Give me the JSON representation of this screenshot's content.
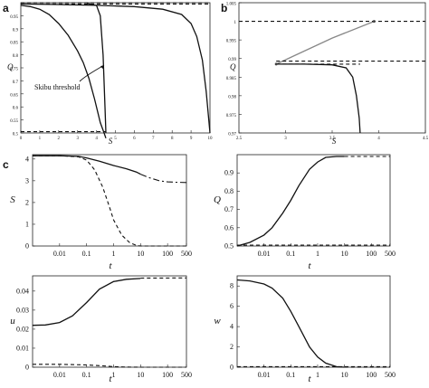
{
  "figure": {
    "panel_labels": {
      "a": "a",
      "b": "b",
      "c": "c"
    }
  },
  "chart_data": [
    {
      "id": "a",
      "type": "line",
      "xlabel": "S",
      "ylabel": "Q",
      "xlim": [
        0,
        10
      ],
      "ylim": [
        0.5,
        1.0
      ],
      "x_ticks": [
        "0",
        "1",
        "2",
        "3",
        "4",
        "5",
        "6",
        "7",
        "8",
        "9",
        "10"
      ],
      "y_ticks": [
        "0.5",
        "0.55",
        "0.6",
        "0.65",
        "0.7",
        "0.75",
        "0.8",
        "0.85",
        "0.9",
        "0.95"
      ],
      "annotation": "Skibu threshold",
      "series": [
        {
          "style": "solid",
          "x": [
            0.0,
            0.5,
            1.0,
            1.5,
            2.0,
            2.5,
            3.0,
            3.3,
            3.6,
            3.9,
            4.2,
            4.4,
            4.5
          ],
          "y": [
            0.99,
            0.985,
            0.975,
            0.955,
            0.92,
            0.875,
            0.815,
            0.77,
            0.71,
            0.63,
            0.54,
            0.5,
            0.48
          ]
        },
        {
          "style": "solid",
          "x": [
            3.5,
            4.0,
            4.2,
            4.35,
            4.45,
            4.5
          ],
          "y": [
            0.997,
            0.99,
            0.95,
            0.8,
            0.6,
            0.5
          ]
        },
        {
          "style": "solid",
          "x": [
            0.0,
            2.0,
            4.0,
            6.0,
            7.5,
            8.5,
            9.0,
            9.3,
            9.6,
            9.8,
            10.0
          ],
          "y": [
            0.995,
            0.993,
            0.99,
            0.985,
            0.975,
            0.955,
            0.92,
            0.87,
            0.78,
            0.66,
            0.5
          ]
        },
        {
          "style": "dashed",
          "x": [
            0,
            10
          ],
          "y": [
            1.0,
            1.0
          ]
        },
        {
          "style": "dashed",
          "x": [
            0,
            10
          ],
          "y": [
            0.995,
            0.995
          ]
        },
        {
          "style": "dashed",
          "x": [
            0,
            4.5
          ],
          "y": [
            0.505,
            0.505
          ]
        }
      ]
    },
    {
      "id": "b",
      "type": "line",
      "xlabel": "S",
      "ylabel": "Q",
      "xlim": [
        2.5,
        4.5
      ],
      "ylim": [
        0.97,
        1.005
      ],
      "x_ticks": [
        "2.5",
        "3",
        "3.5",
        "4",
        "4.5"
      ],
      "y_ticks": [
        "0.97",
        "0.975",
        "0.98",
        "0.985",
        "0.99",
        "0.995",
        "1",
        "1.005"
      ],
      "series": [
        {
          "style": "solid",
          "color": "#888888",
          "x": [
            2.9,
            3.2,
            3.5,
            3.95
          ],
          "y": [
            0.9885,
            0.992,
            0.9955,
            1.0
          ]
        },
        {
          "style": "solid",
          "x": [
            2.9,
            3.2,
            3.5,
            3.65,
            3.72,
            3.76,
            3.79,
            3.8
          ],
          "y": [
            0.9885,
            0.9885,
            0.9883,
            0.9875,
            0.985,
            0.98,
            0.974,
            0.97
          ]
        },
        {
          "style": "dashed",
          "x": [
            2.5,
            4.5
          ],
          "y": [
            1.0,
            1.0
          ]
        },
        {
          "style": "dashed",
          "x": [
            2.9,
            4.5
          ],
          "y": [
            0.9893,
            0.9893
          ]
        },
        {
          "style": "dashed",
          "x": [
            2.9,
            3.8
          ],
          "y": [
            0.9885,
            0.9885
          ]
        }
      ]
    },
    {
      "id": "c-S",
      "type": "line",
      "xscale": "log",
      "xlabel": "t",
      "ylabel": "S",
      "xlim": [
        0.001,
        500
      ],
      "ylim": [
        0,
        4.2
      ],
      "x_ticks": [
        "0.01",
        "0.1",
        "1",
        "10",
        "100",
        "500"
      ],
      "y_ticks": [
        "0",
        "1",
        "2",
        "3",
        "4"
      ],
      "series": [
        {
          "style": "solid",
          "x": [
            0.001,
            0.01,
            0.05,
            0.1,
            0.3,
            1,
            3,
            7,
            10
          ],
          "y": [
            4.15,
            4.15,
            4.12,
            4.05,
            3.9,
            3.7,
            3.55,
            3.4,
            3.3
          ]
        },
        {
          "style": "dash-dot",
          "x": [
            10,
            20,
            50,
            100,
            200,
            500
          ],
          "y": [
            3.3,
            3.15,
            3.0,
            2.95,
            2.93,
            2.92
          ]
        },
        {
          "style": "dashed",
          "x": [
            0.001,
            0.01,
            0.05,
            0.1,
            0.2,
            0.4,
            0.7,
            1,
            2,
            4,
            7,
            10,
            20,
            500
          ],
          "y": [
            4.15,
            4.15,
            4.1,
            3.95,
            3.5,
            2.7,
            1.8,
            1.2,
            0.5,
            0.15,
            0.03,
            0.0,
            0.0,
            0.0
          ]
        }
      ]
    },
    {
      "id": "c-Q",
      "type": "line",
      "xscale": "log",
      "xlabel": "t",
      "ylabel": "Q",
      "xlim": [
        0.001,
        500
      ],
      "ylim": [
        0.5,
        1.0
      ],
      "x_ticks": [
        "0.01",
        "0.1",
        "1",
        "10",
        "100",
        "500"
      ],
      "y_ticks": [
        "0.5",
        "0.6",
        "0.7",
        "0.8",
        "0.9"
      ],
      "series": [
        {
          "style": "solid",
          "x": [
            0.001,
            0.003,
            0.01,
            0.02,
            0.05,
            0.1,
            0.2,
            0.5,
            1,
            2,
            5,
            10
          ],
          "y": [
            0.5,
            0.52,
            0.56,
            0.6,
            0.68,
            0.75,
            0.83,
            0.92,
            0.96,
            0.985,
            0.99,
            0.99
          ]
        },
        {
          "style": "dashed",
          "x": [
            10,
            500
          ],
          "y": [
            0.99,
            0.99
          ]
        },
        {
          "style": "dashed",
          "x": [
            0.001,
            500
          ],
          "y": [
            0.505,
            0.505
          ]
        }
      ]
    },
    {
      "id": "c-u",
      "type": "line",
      "xscale": "log",
      "xlabel": "t",
      "ylabel": "u",
      "xlim": [
        0.001,
        500
      ],
      "ylim": [
        0,
        0.048
      ],
      "x_ticks": [
        "0.01",
        "0.1",
        "1",
        "10",
        "100",
        "500"
      ],
      "y_ticks": [
        "0",
        "0.01",
        "0.02",
        "0.03",
        "0.04"
      ],
      "series": [
        {
          "style": "solid",
          "x": [
            0.001,
            0.003,
            0.01,
            0.03,
            0.1,
            0.3,
            1,
            3,
            10
          ],
          "y": [
            0.022,
            0.0222,
            0.0235,
            0.027,
            0.034,
            0.041,
            0.045,
            0.0462,
            0.0466
          ]
        },
        {
          "style": "dashed",
          "x": [
            10,
            500
          ],
          "y": [
            0.0468,
            0.0469
          ]
        },
        {
          "style": "dashed",
          "x": [
            0.001,
            0.01,
            0.1,
            0.5,
            1,
            3,
            10,
            500
          ],
          "y": [
            0.0015,
            0.0015,
            0.0012,
            0.0006,
            0.0003,
            0.0001,
            0.0,
            0.0
          ]
        }
      ]
    },
    {
      "id": "c-w",
      "type": "line",
      "xscale": "log",
      "xlabel": "t",
      "ylabel": "w",
      "xlim": [
        0.001,
        500
      ],
      "ylim": [
        0,
        9
      ],
      "x_ticks": [
        "0.01",
        "0.1",
        "1",
        "10",
        "100",
        "500"
      ],
      "y_ticks": [
        "0",
        "2",
        "4",
        "6",
        "8"
      ],
      "series": [
        {
          "style": "solid",
          "x": [
            0.001,
            0.003,
            0.01,
            0.02,
            0.05,
            0.1,
            0.2,
            0.5,
            1,
            2,
            5,
            10
          ],
          "y": [
            8.6,
            8.5,
            8.2,
            7.8,
            6.8,
            5.5,
            4.0,
            2.0,
            1.0,
            0.4,
            0.05,
            0.0
          ]
        },
        {
          "style": "dashed",
          "x": [
            10,
            500
          ],
          "y": [
            0.0,
            0.0
          ]
        },
        {
          "style": "dashed",
          "x": [
            0.001,
            500
          ],
          "y": [
            0.05,
            0.05
          ]
        }
      ]
    }
  ]
}
